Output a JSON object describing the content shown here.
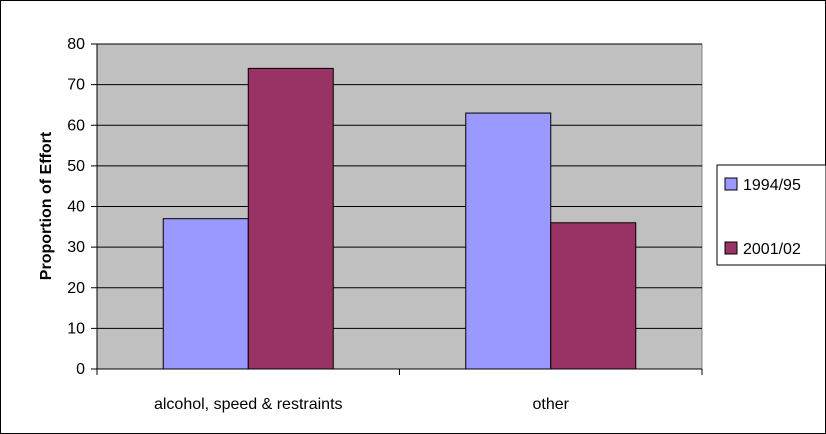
{
  "chart_data": {
    "type": "bar",
    "title": "",
    "xlabel": "",
    "ylabel": "Proportion of Effort",
    "categories": [
      "alcohol, speed & restraints",
      "other"
    ],
    "series": [
      {
        "name": "1994/95",
        "values": [
          37,
          63
        ],
        "color": "#9999ff"
      },
      {
        "name": "2001/02",
        "values": [
          74,
          36
        ],
        "color": "#993366"
      }
    ],
    "ylim": [
      0,
      80
    ],
    "yticks": [
      "0",
      "10",
      "20",
      "30",
      "40",
      "50",
      "60",
      "70",
      "80"
    ],
    "grid": true,
    "plot_background": "#c0c0c0",
    "legend_position": "right"
  }
}
